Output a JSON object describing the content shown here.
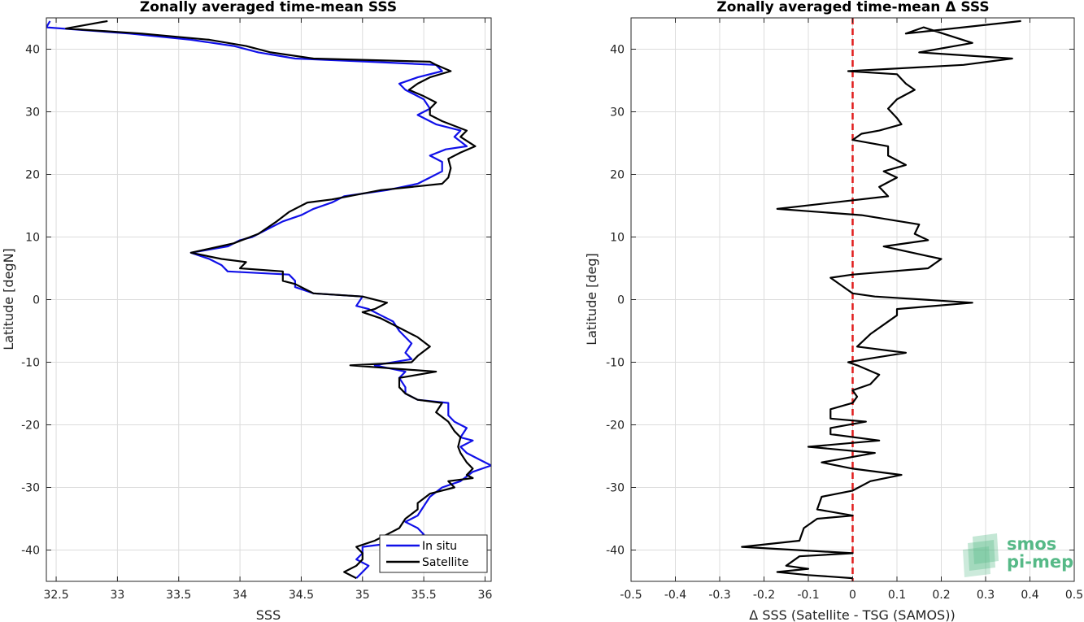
{
  "chart_data": [
    {
      "type": "line",
      "title": "Zonally averaged time-mean SSS",
      "xlabel": "SSS",
      "ylabel": "Latitude [degN]",
      "xlim": [
        32.42,
        36.05
      ],
      "ylim": [
        -45,
        45
      ],
      "xticks": [
        "32.5",
        "33",
        "33.5",
        "34",
        "34.5",
        "35",
        "35.5",
        "36"
      ],
      "yticks": [
        "40",
        "30",
        "20",
        "10",
        "0",
        "-10",
        "-20",
        "-30",
        "-40"
      ],
      "grid": true,
      "legend_position": "bottom-right",
      "series": [
        {
          "name": "In situ",
          "color": "#1010e8",
          "points": [
            [
              32.45,
              44.5
            ],
            [
              32.42,
              43.5
            ],
            [
              33.1,
              42.5
            ],
            [
              33.6,
              41.5
            ],
            [
              33.95,
              40.5
            ],
            [
              34.15,
              39.5
            ],
            [
              34.45,
              38.5
            ],
            [
              35.05,
              38.0
            ],
            [
              35.6,
              37.5
            ],
            [
              35.65,
              36.5
            ],
            [
              35.45,
              35.5
            ],
            [
              35.3,
              34.5
            ],
            [
              35.35,
              33.5
            ],
            [
              35.5,
              32.0
            ],
            [
              35.55,
              30.5
            ],
            [
              35.45,
              29.5
            ],
            [
              35.6,
              28.0
            ],
            [
              35.8,
              27.0
            ],
            [
              35.75,
              26.0
            ],
            [
              35.85,
              24.5
            ],
            [
              35.68,
              24.0
            ],
            [
              35.55,
              23.0
            ],
            [
              35.65,
              22.0
            ],
            [
              35.65,
              20.5
            ],
            [
              35.55,
              19.5
            ],
            [
              35.45,
              18.5
            ],
            [
              35.2,
              17.5
            ],
            [
              34.85,
              16.5
            ],
            [
              34.75,
              15.5
            ],
            [
              34.6,
              14.5
            ],
            [
              34.5,
              13.5
            ],
            [
              34.35,
              12.5
            ],
            [
              34.25,
              11.5
            ],
            [
              34.1,
              10.0
            ],
            [
              34.0,
              9.5
            ],
            [
              33.9,
              8.5
            ],
            [
              33.6,
              7.5
            ],
            [
              33.75,
              6.5
            ],
            [
              33.85,
              5.5
            ],
            [
              33.9,
              4.5
            ],
            [
              34.4,
              4.0
            ],
            [
              34.45,
              3.0
            ],
            [
              34.45,
              2.0
            ],
            [
              34.6,
              1.0
            ],
            [
              35.0,
              0.5
            ],
            [
              34.95,
              -1.0
            ],
            [
              35.05,
              -1.5
            ],
            [
              35.15,
              -2.5
            ],
            [
              35.25,
              -3.5
            ],
            [
              35.3,
              -5.0
            ],
            [
              35.4,
              -7.0
            ],
            [
              35.35,
              -8.5
            ],
            [
              35.4,
              -9.5
            ],
            [
              35.1,
              -10.5
            ],
            [
              35.35,
              -11.5
            ],
            [
              35.3,
              -12.5
            ],
            [
              35.35,
              -14.0
            ],
            [
              35.35,
              -15.0
            ],
            [
              35.45,
              -16.0
            ],
            [
              35.7,
              -16.5
            ],
            [
              35.7,
              -18.5
            ],
            [
              35.75,
              -19.5
            ],
            [
              35.85,
              -20.5
            ],
            [
              35.8,
              -22.0
            ],
            [
              35.9,
              -22.5
            ],
            [
              35.8,
              -23.5
            ],
            [
              35.85,
              -24.5
            ],
            [
              35.95,
              -25.5
            ],
            [
              36.05,
              -26.5
            ],
            [
              35.9,
              -27.5
            ],
            [
              35.8,
              -29.0
            ],
            [
              35.65,
              -30.0
            ],
            [
              35.55,
              -31.5
            ],
            [
              35.5,
              -33.0
            ],
            [
              35.45,
              -34.5
            ],
            [
              35.35,
              -35.5
            ],
            [
              35.45,
              -36.5
            ],
            [
              35.5,
              -37.5
            ],
            [
              35.4,
              -38.5
            ],
            [
              35.0,
              -39.5
            ],
            [
              35.0,
              -40.5
            ],
            [
              34.95,
              -41.5
            ],
            [
              35.05,
              -42.5
            ],
            [
              35.0,
              -43.5
            ],
            [
              34.95,
              -44.5
            ]
          ]
        },
        {
          "name": "Satellite",
          "color": "#000000",
          "points": [
            [
              32.92,
              44.5
            ],
            [
              32.58,
              43.3
            ],
            [
              33.2,
              42.5
            ],
            [
              33.75,
              41.5
            ],
            [
              34.05,
              40.5
            ],
            [
              34.25,
              39.5
            ],
            [
              34.6,
              38.5
            ],
            [
              35.55,
              38.0
            ],
            [
              35.6,
              37.5
            ],
            [
              35.72,
              36.5
            ],
            [
              35.55,
              35.5
            ],
            [
              35.45,
              34.5
            ],
            [
              35.38,
              33.5
            ],
            [
              35.5,
              32.5
            ],
            [
              35.6,
              31.5
            ],
            [
              35.55,
              30.5
            ],
            [
              35.55,
              29.5
            ],
            [
              35.65,
              28.5
            ],
            [
              35.85,
              27.0
            ],
            [
              35.8,
              26.0
            ],
            [
              35.92,
              24.5
            ],
            [
              35.8,
              23.5
            ],
            [
              35.7,
              22.5
            ],
            [
              35.72,
              21.0
            ],
            [
              35.7,
              19.5
            ],
            [
              35.65,
              18.5
            ],
            [
              35.15,
              17.5
            ],
            [
              34.75,
              16.0
            ],
            [
              34.55,
              15.5
            ],
            [
              34.4,
              14.0
            ],
            [
              34.3,
              12.5
            ],
            [
              34.15,
              10.5
            ],
            [
              33.95,
              9.0
            ],
            [
              33.6,
              7.5
            ],
            [
              33.85,
              6.5
            ],
            [
              34.05,
              6.0
            ],
            [
              34.0,
              5.0
            ],
            [
              34.35,
              4.5
            ],
            [
              34.35,
              3.0
            ],
            [
              34.45,
              2.5
            ],
            [
              34.6,
              1.0
            ],
            [
              35.0,
              0.5
            ],
            [
              35.2,
              -0.5
            ],
            [
              35.1,
              -1.5
            ],
            [
              35.0,
              -2.0
            ],
            [
              35.15,
              -3.0
            ],
            [
              35.3,
              -4.5
            ],
            [
              35.45,
              -6.0
            ],
            [
              35.55,
              -7.5
            ],
            [
              35.45,
              -9.0
            ],
            [
              35.4,
              -10.0
            ],
            [
              34.9,
              -10.5
            ],
            [
              35.6,
              -11.5
            ],
            [
              35.3,
              -12.5
            ],
            [
              35.3,
              -14.0
            ],
            [
              35.35,
              -15.0
            ],
            [
              35.45,
              -16.0
            ],
            [
              35.65,
              -16.5
            ],
            [
              35.6,
              -18.0
            ],
            [
              35.7,
              -19.5
            ],
            [
              35.75,
              -21.0
            ],
            [
              35.8,
              -22.0
            ],
            [
              35.78,
              -23.5
            ],
            [
              35.8,
              -24.5
            ],
            [
              35.85,
              -26.0
            ],
            [
              35.9,
              -27.0
            ],
            [
              35.85,
              -28.0
            ],
            [
              35.9,
              -28.5
            ],
            [
              35.7,
              -29.0
            ],
            [
              35.75,
              -30.0
            ],
            [
              35.55,
              -31.0
            ],
            [
              35.45,
              -32.5
            ],
            [
              35.45,
              -33.5
            ],
            [
              35.35,
              -35.0
            ],
            [
              35.3,
              -36.5
            ],
            [
              35.2,
              -37.5
            ],
            [
              35.1,
              -38.5
            ],
            [
              34.95,
              -39.5
            ],
            [
              35.0,
              -40.5
            ],
            [
              35.0,
              -41.5
            ],
            [
              34.95,
              -42.5
            ],
            [
              34.85,
              -43.5
            ],
            [
              34.95,
              -44.5
            ]
          ]
        }
      ]
    },
    {
      "type": "line",
      "title": "Zonally averaged time-mean Δ SSS",
      "xlabel": "Δ SSS (Satellite - TSG (SAMOS))",
      "ylabel": "Latitude [deg]",
      "xlim": [
        -0.5,
        0.5
      ],
      "ylim": [
        -45,
        45
      ],
      "xticks": [
        "-0.5",
        "-0.4",
        "-0.3",
        "-0.2",
        "-0.1",
        "0",
        "0.1",
        "0.2",
        "0.3",
        "0.4",
        "0.5"
      ],
      "yticks": [
        "40",
        "30",
        "20",
        "10",
        "0",
        "-10",
        "-20",
        "-30",
        "-40"
      ],
      "grid": true,
      "reference_line": {
        "x": 0,
        "color": "#e11d1d",
        "style": "dashed"
      },
      "series": [
        {
          "color": "#000000",
          "points": [
            [
              0.38,
              44.5
            ],
            [
              0.12,
              42.5
            ],
            [
              0.16,
              43.5
            ],
            [
              0.27,
              41.0
            ],
            [
              0.15,
              39.5
            ],
            [
              0.36,
              38.5
            ],
            [
              0.25,
              37.5
            ],
            [
              -0.01,
              36.5
            ],
            [
              0.1,
              36.0
            ],
            [
              0.12,
              34.5
            ],
            [
              0.14,
              33.5
            ],
            [
              0.1,
              32.0
            ],
            [
              0.08,
              30.5
            ],
            [
              0.1,
              29.0
            ],
            [
              0.11,
              28.0
            ],
            [
              0.06,
              27.0
            ],
            [
              0.02,
              26.5
            ],
            [
              0.0,
              25.5
            ],
            [
              0.08,
              24.5
            ],
            [
              0.08,
              23.0
            ],
            [
              0.12,
              21.5
            ],
            [
              0.07,
              20.5
            ],
            [
              0.1,
              19.5
            ],
            [
              0.06,
              18.0
            ],
            [
              0.08,
              16.5
            ],
            [
              -0.17,
              14.5
            ],
            [
              0.02,
              13.5
            ],
            [
              0.15,
              12.0
            ],
            [
              0.14,
              10.5
            ],
            [
              0.17,
              9.5
            ],
            [
              0.07,
              8.5
            ],
            [
              0.2,
              6.5
            ],
            [
              0.17,
              5.0
            ],
            [
              0.0,
              4.0
            ],
            [
              -0.05,
              3.5
            ],
            [
              -0.02,
              2.0
            ],
            [
              0.0,
              1.0
            ],
            [
              0.05,
              0.5
            ],
            [
              0.27,
              -0.5
            ],
            [
              0.1,
              -1.5
            ],
            [
              0.1,
              -2.5
            ],
            [
              0.07,
              -4.0
            ],
            [
              0.04,
              -5.5
            ],
            [
              0.01,
              -7.5
            ],
            [
              0.12,
              -8.5
            ],
            [
              0.03,
              -9.5
            ],
            [
              -0.01,
              -10.0
            ],
            [
              0.01,
              -10.5
            ],
            [
              0.06,
              -12.0
            ],
            [
              0.04,
              -13.5
            ],
            [
              0.0,
              -14.5
            ],
            [
              0.01,
              -15.5
            ],
            [
              0.0,
              -16.5
            ],
            [
              -0.05,
              -17.5
            ],
            [
              -0.05,
              -19.0
            ],
            [
              0.03,
              -19.5
            ],
            [
              -0.05,
              -20.5
            ],
            [
              -0.05,
              -21.5
            ],
            [
              0.06,
              -22.5
            ],
            [
              -0.1,
              -23.5
            ],
            [
              0.05,
              -24.5
            ],
            [
              -0.07,
              -26.0
            ],
            [
              0.0,
              -27.0
            ],
            [
              0.11,
              -28.0
            ],
            [
              0.04,
              -29.0
            ],
            [
              0.0,
              -30.5
            ],
            [
              -0.07,
              -31.5
            ],
            [
              -0.08,
              -33.5
            ],
            [
              0.0,
              -34.5
            ],
            [
              -0.08,
              -35.0
            ],
            [
              -0.11,
              -36.5
            ],
            [
              -0.12,
              -38.5
            ],
            [
              -0.25,
              -39.5
            ],
            [
              0.0,
              -40.5
            ],
            [
              -0.12,
              -41.0
            ],
            [
              -0.15,
              -42.5
            ],
            [
              -0.1,
              -43.0
            ],
            [
              -0.17,
              -43.5
            ],
            [
              -0.1,
              -44.0
            ],
            [
              0.0,
              -44.5
            ]
          ]
        }
      ]
    }
  ],
  "logo": {
    "line1": "smos",
    "line2": "pi-mep",
    "color": "#56b987"
  }
}
